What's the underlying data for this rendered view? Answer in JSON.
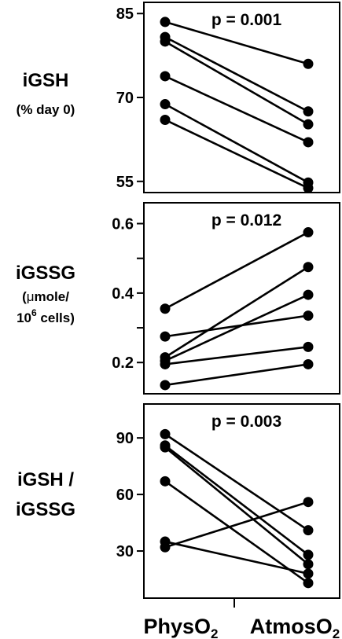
{
  "chart_data": [
    {
      "type": "line",
      "title": "p = 0.001",
      "ylabel_main": "iGSH",
      "ylabel_sub": "(% day 0)",
      "categories": [
        "PhysO2",
        "AtmosO2"
      ],
      "ylim": [
        53,
        87
      ],
      "yticks": [
        55,
        70,
        85
      ],
      "ytick_labels": [
        "55",
        "70",
        "85"
      ],
      "series": [
        {
          "values": [
            83.5,
            76.0
          ]
        },
        {
          "values": [
            80.8,
            67.5
          ]
        },
        {
          "values": [
            80.0,
            65.2
          ]
        },
        {
          "values": [
            73.8,
            62.0
          ]
        },
        {
          "values": [
            68.8,
            54.8
          ]
        },
        {
          "values": [
            66.0,
            53.8
          ]
        }
      ]
    },
    {
      "type": "line",
      "title": "p = 0.012",
      "ylabel_main": "iGSSG",
      "ylabel_sub_prefix": "(",
      "ylabel_sub_mu": "μ",
      "ylabel_sub_rest": "mole/",
      "ylabel_sub2_base": "10",
      "ylabel_sub2_sup": "6",
      "ylabel_sub2_rest": " cells)",
      "categories": [
        "PhysO2",
        "AtmosO2"
      ],
      "ylim": [
        0.11,
        0.66
      ],
      "yticks": [
        0.2,
        0.3,
        0.4,
        0.5,
        0.6
      ],
      "ytick_labels": [
        "0.2",
        "",
        "0.4",
        "",
        "0.6"
      ],
      "series": [
        {
          "values": [
            0.355,
            0.575
          ]
        },
        {
          "values": [
            0.275,
            0.335
          ]
        },
        {
          "values": [
            0.215,
            0.475
          ]
        },
        {
          "values": [
            0.205,
            0.395
          ]
        },
        {
          "values": [
            0.195,
            0.245
          ]
        },
        {
          "values": [
            0.135,
            0.195
          ]
        }
      ]
    },
    {
      "type": "line",
      "title": "p = 0.003",
      "ylabel_main": "iGSH /",
      "ylabel_main2": "iGSSG",
      "categories": [
        "PhysO2",
        "AtmosO2"
      ],
      "ylim": [
        5,
        108
      ],
      "yticks": [
        30,
        60,
        90
      ],
      "ytick_labels": [
        "30",
        "60",
        "90"
      ],
      "series": [
        {
          "values": [
            92,
            41
          ]
        },
        {
          "values": [
            86,
            28
          ]
        },
        {
          "values": [
            85,
            23
          ]
        },
        {
          "values": [
            67,
            13
          ]
        },
        {
          "values": [
            35,
            18
          ]
        },
        {
          "values": [
            32,
            56
          ]
        }
      ]
    }
  ],
  "x_axis": {
    "label1_base": "PhysO",
    "label1_sub": "2",
    "label2_base": "AtmosO",
    "label2_sub": "2"
  }
}
